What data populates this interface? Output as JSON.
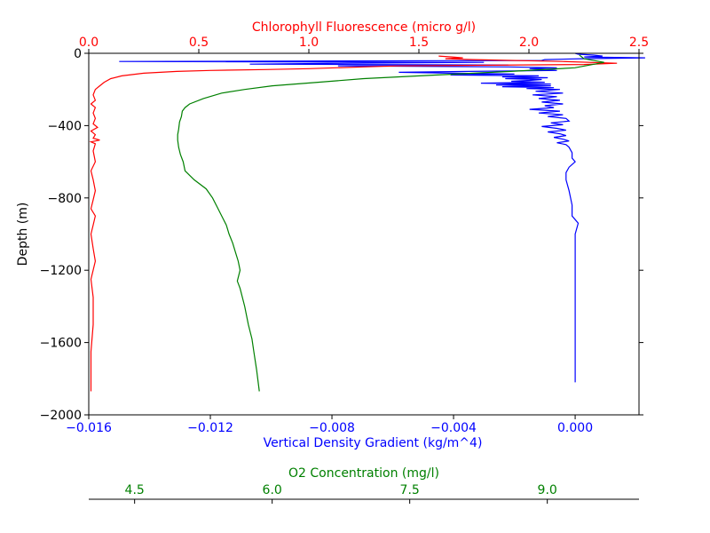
{
  "colors": {
    "density": "#0000ff",
    "chlorophyll": "#ff0000",
    "oxygen": "#008000",
    "axis": "#000000"
  },
  "chart_data": {
    "type": "line",
    "title": "",
    "legend": "none",
    "grid": false,
    "y_axis": {
      "label": "Depth (m)",
      "range": [
        -2000,
        0
      ],
      "ticks": [
        0,
        -400,
        -800,
        -1200,
        -1600,
        -2000
      ],
      "tick_labels": [
        "0",
        "−400",
        "−800",
        "−1200",
        "−1600",
        "−2000"
      ]
    },
    "x_axes": [
      {
        "id": "density",
        "label": "Vertical Density Gradient (kg/m^4)",
        "position": "bottom",
        "color": "#0000ff",
        "range": [
          -0.016,
          0.0021
        ],
        "ticks": [
          -0.016,
          -0.012,
          -0.008,
          -0.004,
          0.0
        ],
        "tick_labels": [
          "−0.016",
          "−0.012",
          "−0.008",
          "−0.004",
          "0.000"
        ]
      },
      {
        "id": "chlorophyll",
        "label": "Chlorophyll Fluorescence (micro g/l)",
        "position": "top",
        "color": "#ff0000",
        "range": [
          0.0,
          2.5
        ],
        "ticks": [
          0.0,
          0.5,
          1.0,
          1.5,
          2.0,
          2.5
        ],
        "tick_labels": [
          "0.0",
          "0.5",
          "1.0",
          "1.5",
          "2.0",
          "2.5"
        ]
      },
      {
        "id": "oxygen",
        "label": "O2 Concentration (mg/l)",
        "position": "bottom-offset",
        "color": "#008000",
        "range": [
          4.0,
          10.0
        ],
        "ticks": [
          4.5,
          6.0,
          7.5,
          9.0
        ],
        "tick_labels": [
          "4.5",
          "6.0",
          "7.5",
          "9.0"
        ]
      }
    ],
    "series": [
      {
        "axis": "density",
        "color": "#0000ff",
        "points": [
          [
            0.0,
            0
          ],
          [
            0.0001,
            -5
          ],
          [
            0.0006,
            -10
          ],
          [
            0.0009,
            -15
          ],
          [
            0.0003,
            -20
          ],
          [
            0.0023,
            -25
          ],
          [
            0.0002,
            -30
          ],
          [
            -0.001,
            -35
          ],
          [
            -0.0011,
            -40
          ],
          [
            -0.015,
            -45
          ],
          [
            -0.003,
            -50
          ],
          [
            -0.0075,
            -55
          ],
          [
            -0.0107,
            -60
          ],
          [
            -0.0022,
            -65
          ],
          [
            -0.0078,
            -70
          ],
          [
            -0.0022,
            -75
          ],
          [
            -0.0006,
            -80
          ],
          [
            -0.0015,
            -85
          ],
          [
            -0.0009,
            -90
          ],
          [
            -0.0006,
            -95
          ],
          [
            -0.0035,
            -100
          ],
          [
            -0.0058,
            -105
          ],
          [
            -0.004,
            -110
          ],
          [
            -0.002,
            -115
          ],
          [
            -0.0041,
            -120
          ],
          [
            -0.0012,
            -125
          ],
          [
            -0.0024,
            -130
          ],
          [
            -0.0009,
            -135
          ],
          [
            -0.0023,
            -140
          ],
          [
            -0.0011,
            -145
          ],
          [
            -0.0015,
            -150
          ],
          [
            -0.0021,
            -155
          ],
          [
            -0.001,
            -160
          ],
          [
            -0.0031,
            -165
          ],
          [
            -0.0008,
            -170
          ],
          [
            -0.0026,
            -175
          ],
          [
            -0.0008,
            -180
          ],
          [
            -0.0024,
            -185
          ],
          [
            -0.0007,
            -190
          ],
          [
            -0.0016,
            -195
          ],
          [
            -0.0005,
            -200
          ],
          [
            -0.0013,
            -210
          ],
          [
            -0.0004,
            -220
          ],
          [
            -0.0014,
            -230
          ],
          [
            -0.0006,
            -240
          ],
          [
            -0.0012,
            -250
          ],
          [
            -0.0005,
            -260
          ],
          [
            -0.0011,
            -270
          ],
          [
            -0.0004,
            -280
          ],
          [
            -0.001,
            -290
          ],
          [
            -0.0007,
            -300
          ],
          [
            -0.0015,
            -310
          ],
          [
            -0.0005,
            -320
          ],
          [
            -0.0012,
            -330
          ],
          [
            -0.0004,
            -340
          ],
          [
            -0.0009,
            -350
          ],
          [
            -0.0003,
            -360
          ],
          [
            -0.0002,
            -375
          ],
          [
            -0.0008,
            -385
          ],
          [
            -0.0004,
            -395
          ],
          [
            -0.0011,
            -405
          ],
          [
            -0.0006,
            -415
          ],
          [
            -0.0003,
            -425
          ],
          [
            -0.0009,
            -435
          ],
          [
            -0.0005,
            -445
          ],
          [
            -0.0003,
            -455
          ],
          [
            -0.0007,
            -465
          ],
          [
            -0.0004,
            -475
          ],
          [
            -0.0002,
            -485
          ],
          [
            -0.0006,
            -495
          ],
          [
            -0.0003,
            -505
          ],
          [
            -0.0002,
            -520
          ],
          [
            -0.0001,
            -550
          ],
          [
            -0.0001,
            -580
          ],
          [
            0.0,
            -600
          ],
          [
            -0.0002,
            -630
          ],
          [
            -0.0003,
            -660
          ],
          [
            -0.0003,
            -700
          ],
          [
            -0.0002,
            -760
          ],
          [
            -0.0001,
            -840
          ],
          [
            -0.0001,
            -900
          ],
          [
            0.0,
            -920
          ],
          [
            0.0001,
            -940
          ],
          [
            0.0,
            -1000
          ],
          [
            0.0,
            -1100
          ],
          [
            0.0,
            -1200
          ],
          [
            0.0,
            -1300
          ],
          [
            0.0,
            -1400
          ],
          [
            0.0,
            -1500
          ],
          [
            0.0,
            -1600
          ],
          [
            0.0,
            -1700
          ],
          [
            0.0,
            -1820
          ]
        ]
      },
      {
        "axis": "chlorophyll",
        "color": "#ff0000",
        "points": [
          [
            1.59,
            -15
          ],
          [
            1.65,
            -20
          ],
          [
            1.7,
            -25
          ],
          [
            1.62,
            -30
          ],
          [
            1.75,
            -35
          ],
          [
            2.15,
            -45
          ],
          [
            2.4,
            -55
          ],
          [
            2.25,
            -62
          ],
          [
            1.4,
            -70
          ],
          [
            1.25,
            -75
          ],
          [
            1.0,
            -85
          ],
          [
            0.8,
            -90
          ],
          [
            0.55,
            -95
          ],
          [
            0.4,
            -100
          ],
          [
            0.25,
            -110
          ],
          [
            0.15,
            -125
          ],
          [
            0.1,
            -140
          ],
          [
            0.07,
            -160
          ],
          [
            0.05,
            -180
          ],
          [
            0.03,
            -200
          ],
          [
            0.02,
            -230
          ],
          [
            0.03,
            -260
          ],
          [
            0.01,
            -280
          ],
          [
            0.03,
            -300
          ],
          [
            0.02,
            -330
          ],
          [
            0.03,
            -360
          ],
          [
            0.02,
            -390
          ],
          [
            0.04,
            -410
          ],
          [
            0.01,
            -430
          ],
          [
            0.03,
            -450
          ],
          [
            0.02,
            -470
          ],
          [
            0.05,
            -480
          ],
          [
            0.01,
            -490
          ],
          [
            0.03,
            -500
          ],
          [
            0.02,
            -540
          ],
          [
            0.03,
            -600
          ],
          [
            0.01,
            -650
          ],
          [
            0.02,
            -700
          ],
          [
            0.03,
            -760
          ],
          [
            0.02,
            -810
          ],
          [
            0.01,
            -860
          ],
          [
            0.03,
            -900
          ],
          [
            0.02,
            -950
          ],
          [
            0.01,
            -1000
          ],
          [
            0.02,
            -1080
          ],
          [
            0.03,
            -1150
          ],
          [
            0.01,
            -1250
          ],
          [
            0.02,
            -1350
          ],
          [
            0.02,
            -1500
          ],
          [
            0.01,
            -1650
          ],
          [
            0.01,
            -1750
          ],
          [
            0.01,
            -1870
          ]
        ]
      },
      {
        "axis": "oxygen",
        "color": "#008000",
        "points": [
          [
            9.35,
            -10
          ],
          [
            9.4,
            -30
          ],
          [
            9.62,
            -50
          ],
          [
            9.3,
            -80
          ],
          [
            8.6,
            -100
          ],
          [
            7.8,
            -120
          ],
          [
            7.0,
            -140
          ],
          [
            6.5,
            -160
          ],
          [
            6.0,
            -180
          ],
          [
            5.7,
            -200
          ],
          [
            5.45,
            -220
          ],
          [
            5.25,
            -250
          ],
          [
            5.1,
            -280
          ],
          [
            5.05,
            -300
          ],
          [
            5.02,
            -320
          ],
          [
            5.01,
            -350
          ],
          [
            4.99,
            -380
          ],
          [
            4.98,
            -420
          ],
          [
            4.97,
            -450
          ],
          [
            4.97,
            -480
          ],
          [
            4.98,
            -520
          ],
          [
            5.0,
            -560
          ],
          [
            5.03,
            -600
          ],
          [
            5.05,
            -650
          ],
          [
            5.15,
            -700
          ],
          [
            5.28,
            -750
          ],
          [
            5.35,
            -800
          ],
          [
            5.4,
            -850
          ],
          [
            5.45,
            -900
          ],
          [
            5.5,
            -950
          ],
          [
            5.53,
            -1000
          ],
          [
            5.57,
            -1050
          ],
          [
            5.6,
            -1100
          ],
          [
            5.63,
            -1150
          ],
          [
            5.65,
            -1200
          ],
          [
            5.62,
            -1260
          ],
          [
            5.65,
            -1300
          ],
          [
            5.7,
            -1400
          ],
          [
            5.74,
            -1500
          ],
          [
            5.78,
            -1580
          ],
          [
            5.8,
            -1650
          ],
          [
            5.83,
            -1750
          ],
          [
            5.86,
            -1870
          ]
        ]
      }
    ]
  }
}
